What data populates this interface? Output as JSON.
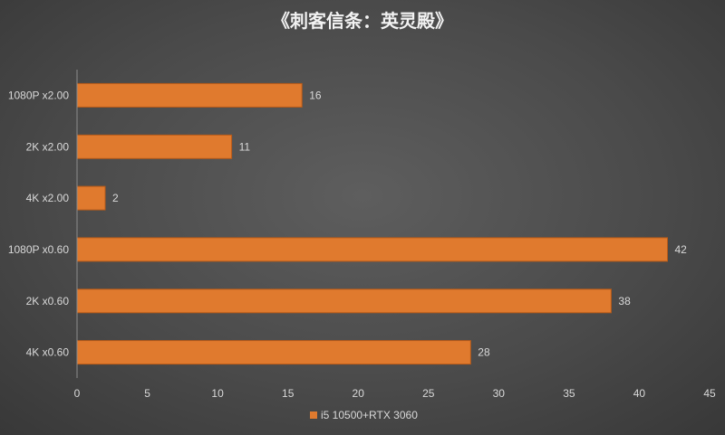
{
  "chart_data": {
    "type": "bar",
    "orientation": "horizontal",
    "title": "《刺客信条：英灵殿》",
    "categories": [
      "1080P x2.00",
      "2K x2.00",
      "4K x2.00",
      "1080P x0.60",
      "2K x0.60",
      "4K x0.60"
    ],
    "series": [
      {
        "name": "i5 10500+RTX 3060",
        "values": [
          16,
          11,
          2,
          42,
          38,
          28
        ]
      }
    ],
    "xlim": [
      0,
      45
    ],
    "xticks": [
      0,
      5,
      10,
      15,
      20,
      25,
      30,
      35,
      40,
      45
    ],
    "xlabel": "",
    "ylabel": "",
    "grid": false,
    "data_labels": true,
    "legend_position": "bottom",
    "colors": {
      "bar": "#e07a2e",
      "bar_edge": "#b85a18",
      "text": "#d9d9d9",
      "axis": "#8c8c8c",
      "title": "#f2f2f2"
    }
  }
}
